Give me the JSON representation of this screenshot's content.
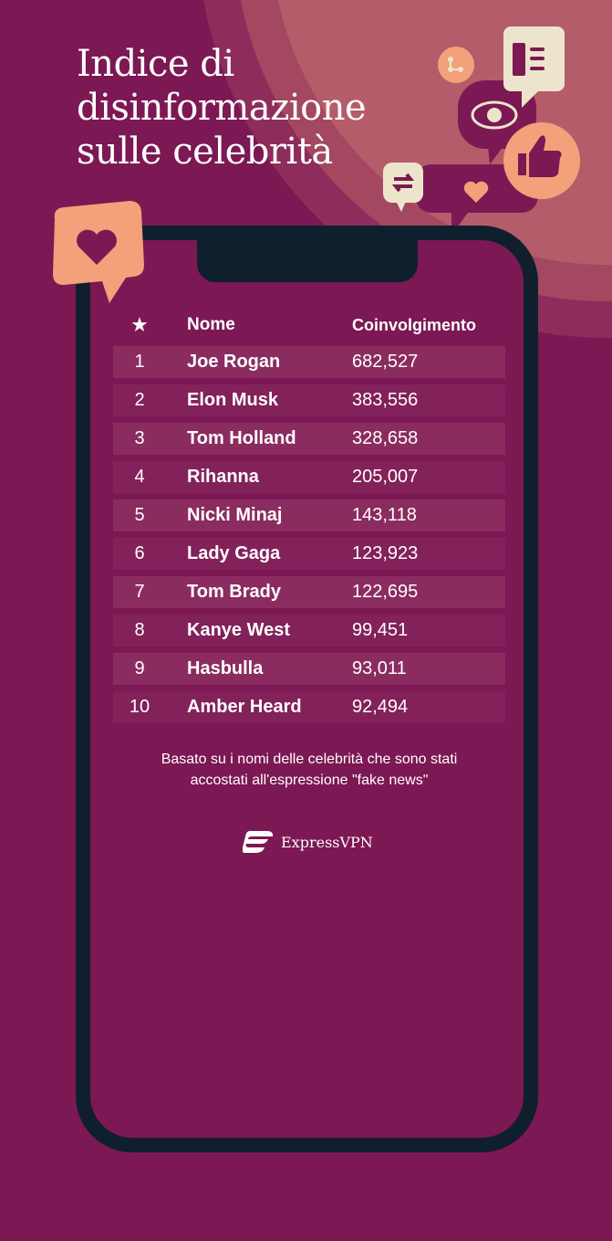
{
  "title": {
    "lines": [
      "Indice di",
      "disinformazione",
      "sulle celebrità"
    ]
  },
  "table": {
    "headers": {
      "rank_icon": "star-icon",
      "name": "Nome",
      "value": "Coinvolgimento"
    },
    "rows": [
      {
        "rank": "1",
        "name": "Joe Rogan",
        "value": "682,527"
      },
      {
        "rank": "2",
        "name": "Elon Musk",
        "value": "383,556"
      },
      {
        "rank": "3",
        "name": "Tom Holland",
        "value": "328,658"
      },
      {
        "rank": "4",
        "name": "Rihanna",
        "value": "205,007"
      },
      {
        "rank": "5",
        "name": "Nicki Minaj",
        "value": "143,118"
      },
      {
        "rank": "6",
        "name": "Lady Gaga",
        "value": "123,923"
      },
      {
        "rank": "7",
        "name": "Tom Brady",
        "value": "122,695"
      },
      {
        "rank": "8",
        "name": "Kanye West",
        "value": "99,451"
      },
      {
        "rank": "9",
        "name": "Hasbulla",
        "value": "93,011"
      },
      {
        "rank": "10",
        "name": "Amber Heard",
        "value": "92,494"
      }
    ]
  },
  "note": {
    "lines": [
      "Basato su i nomi delle celebrità che sono stati",
      "accostati all'espressione \"fake news\""
    ]
  },
  "logo": {
    "text": "ExpressVPN"
  },
  "colors": {
    "background": "#7c1853",
    "phone": "#0f1f2e",
    "accent": "#f2a17a",
    "cream": "#ece5cc"
  }
}
